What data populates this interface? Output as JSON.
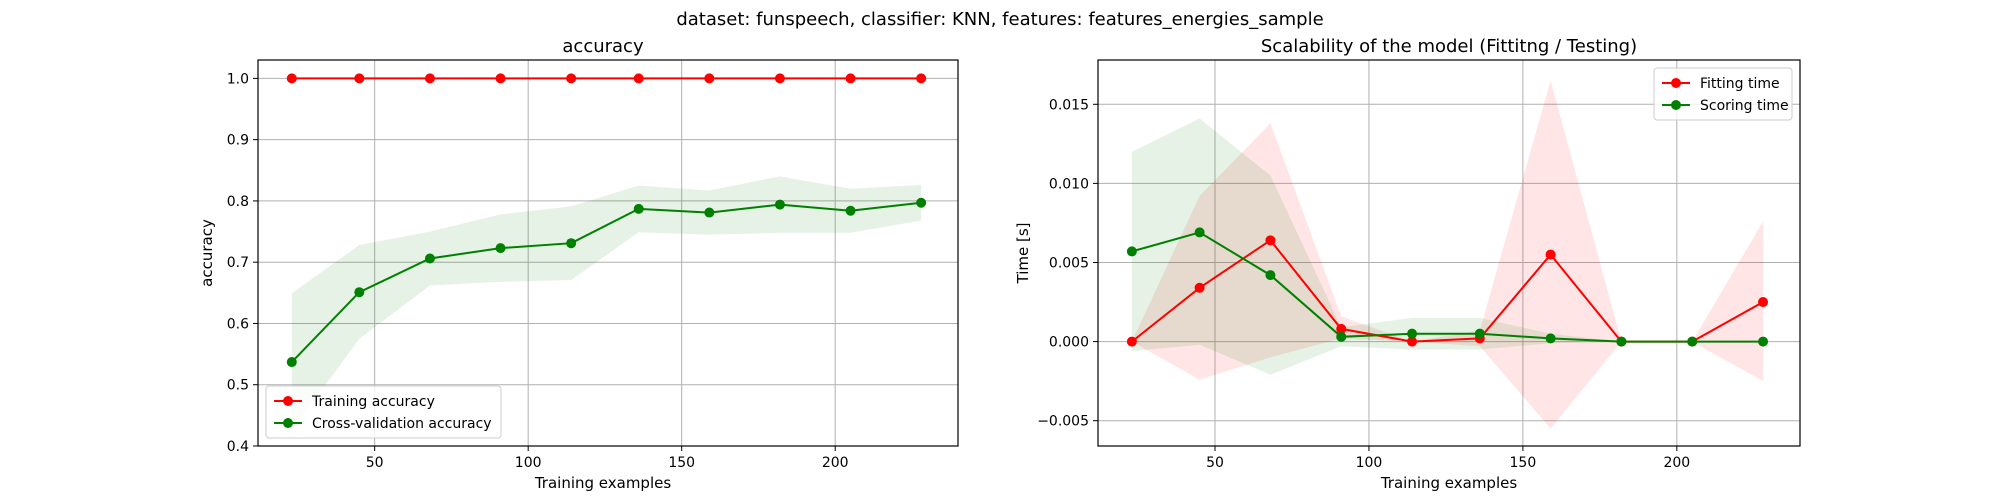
{
  "figure": {
    "suptitle": "dataset: funspeech, classifier: KNN, features: features_energies_sample"
  },
  "chart_data": [
    {
      "type": "line",
      "title": "accuracy",
      "xlabel": "Training examples",
      "ylabel": "accuracy",
      "xlim": [
        12,
        240
      ],
      "ylim": [
        0.4,
        1.03
      ],
      "xticks": [
        50,
        100,
        150,
        200
      ],
      "xtick_labels": [
        "50",
        "100",
        "150",
        "200"
      ],
      "yticks": [
        0.4,
        0.5,
        0.6,
        0.7,
        0.8,
        0.9,
        1.0
      ],
      "ytick_labels": [
        "0.4",
        "0.5",
        "0.6",
        "0.7",
        "0.8",
        "0.9",
        "1.0"
      ],
      "grid": true,
      "legend_position": "lower-left",
      "x": [
        23,
        45,
        68,
        91,
        114,
        136,
        159,
        182,
        205,
        228
      ],
      "series": [
        {
          "name": "Training accuracy",
          "color": "#ff0000",
          "values": [
            1.0,
            1.0,
            1.0,
            1.0,
            1.0,
            1.0,
            1.0,
            1.0,
            1.0,
            1.0
          ],
          "band_lower": [
            1.0,
            1.0,
            1.0,
            1.0,
            1.0,
            1.0,
            1.0,
            1.0,
            1.0,
            1.0
          ],
          "band_upper": [
            1.0,
            1.0,
            1.0,
            1.0,
            1.0,
            1.0,
            1.0,
            1.0,
            1.0,
            1.0
          ]
        },
        {
          "name": "Cross-validation accuracy",
          "color": "#008000",
          "values": [
            0.537,
            0.651,
            0.706,
            0.723,
            0.731,
            0.787,
            0.781,
            0.794,
            0.784,
            0.797
          ],
          "band_lower": [
            0.425,
            0.575,
            0.662,
            0.668,
            0.671,
            0.749,
            0.745,
            0.748,
            0.748,
            0.768
          ],
          "band_upper": [
            0.649,
            0.728,
            0.75,
            0.778,
            0.791,
            0.825,
            0.817,
            0.84,
            0.82,
            0.826
          ]
        }
      ]
    },
    {
      "type": "line",
      "title": "Scalability of the model (Fittitng / Testing)",
      "xlabel": "Training examples",
      "ylabel": "Time [s]",
      "xlim": [
        12,
        240
      ],
      "ylim": [
        -0.0066,
        0.0178
      ],
      "xticks": [
        50,
        100,
        150,
        200
      ],
      "xtick_labels": [
        "50",
        "100",
        "150",
        "200"
      ],
      "yticks": [
        -0.005,
        0.0,
        0.005,
        0.01,
        0.015
      ],
      "ytick_labels": [
        "−0.005",
        "0.000",
        "0.005",
        "0.010",
        "0.015"
      ],
      "grid": true,
      "legend_position": "upper-right",
      "x": [
        23,
        45,
        68,
        91,
        114,
        136,
        159,
        182,
        205,
        228
      ],
      "series": [
        {
          "name": "Fitting time",
          "color": "#ff0000",
          "values": [
            0.0,
            0.0034,
            0.0064,
            0.0008,
            0.0,
            0.0002,
            0.0055,
            0.0,
            0.0,
            0.0025
          ],
          "band_lower": [
            0.0,
            -0.0024,
            -0.001,
            0.0002,
            0.0,
            -0.0003,
            -0.0055,
            0.0,
            0.0,
            -0.0025
          ],
          "band_upper": [
            0.0,
            0.0092,
            0.0138,
            0.0016,
            0.0,
            0.0007,
            0.0165,
            0.0,
            0.0,
            0.0076
          ]
        },
        {
          "name": "Scoring time",
          "color": "#008000",
          "values": [
            0.0057,
            0.0069,
            0.0042,
            0.0003,
            0.0005,
            0.0005,
            0.0002,
            0.0,
            0.0,
            0.0
          ],
          "band_lower": [
            -0.0006,
            -0.0002,
            -0.0021,
            -0.0003,
            -0.0005,
            -0.0005,
            -0.0001,
            0.0,
            0.0,
            0.0
          ],
          "band_upper": [
            0.012,
            0.0141,
            0.0105,
            0.0009,
            0.0015,
            0.0015,
            0.0005,
            0.0,
            0.0,
            0.0
          ]
        }
      ]
    }
  ]
}
